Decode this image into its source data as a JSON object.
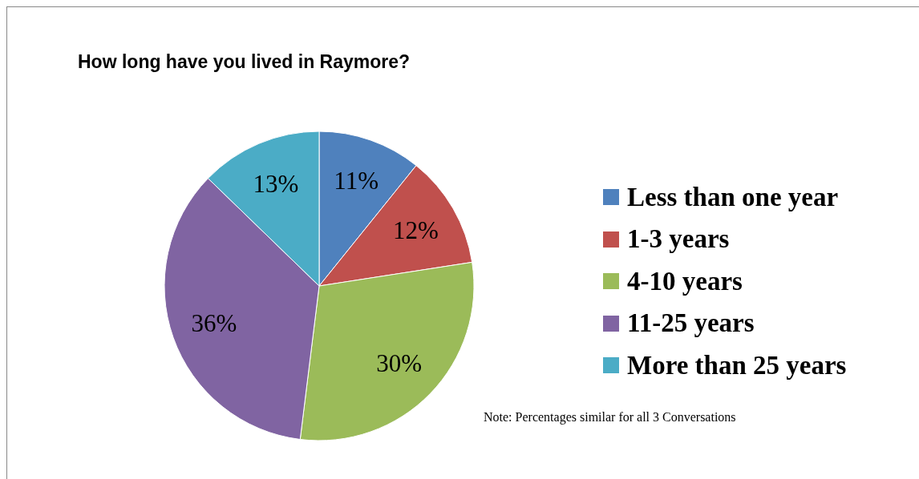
{
  "chart_data": {
    "type": "pie",
    "title": "How long have you lived in Raymore?",
    "categories": [
      "Less than one year",
      "1-3 years",
      "4-10 years",
      "11-25 years",
      "More than 25 years"
    ],
    "values": [
      11,
      12,
      30,
      36,
      13
    ],
    "value_labels": [
      "11%",
      "12%",
      "30%",
      "36%",
      "13%"
    ],
    "colors": [
      "#4f81bd",
      "#c0504d",
      "#9bbb59",
      "#8064a2",
      "#4bacc6"
    ],
    "legend": "right",
    "annotations": [
      "Note: Percentages similar for all 3 Conversations"
    ]
  }
}
